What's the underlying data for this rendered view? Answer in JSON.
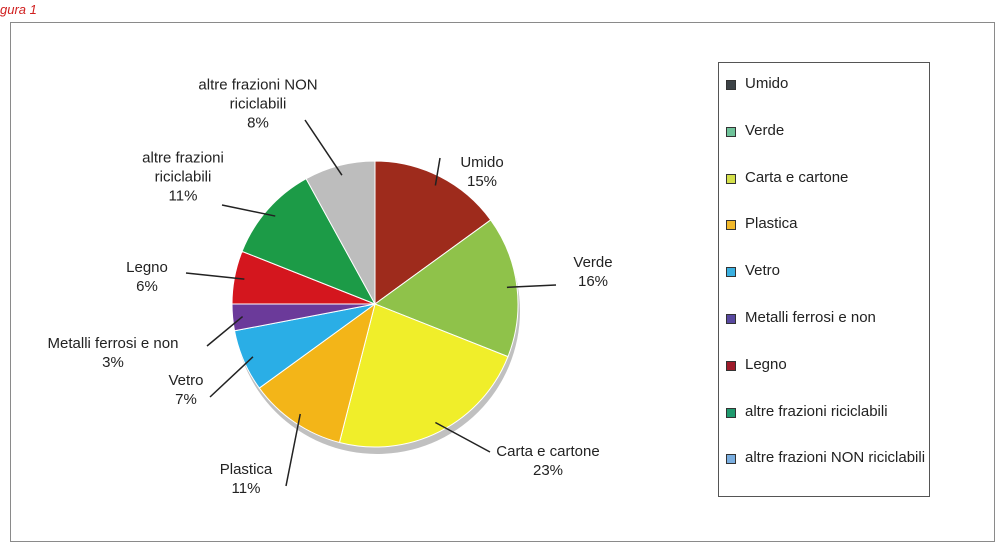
{
  "caption": "gura 1",
  "chart_data": {
    "type": "pie",
    "categories": [
      "Umido",
      "Verde",
      "Carta e cartone",
      "Plastica",
      "Vetro",
      "Metalli ferrosi e non",
      "Legno",
      "altre frazioni riciclabili",
      "altre frazioni NON riciclabili"
    ],
    "values": [
      15,
      16,
      23,
      11,
      7,
      3,
      6,
      11,
      8
    ],
    "value_labels": [
      "15%",
      "16%",
      "23%",
      "11%",
      "7%",
      "3%",
      "6%",
      "11%",
      "8%"
    ],
    "colors": [
      "#9e2b1c",
      "#8fc24a",
      "#f0ee2a",
      "#f3b518",
      "#2aaee6",
      "#6b3a9a",
      "#d4161e",
      "#1c9b47",
      "#bdbdbd"
    ],
    "legend_colors": [
      "#3c4246",
      "#6fc39a",
      "#d4e04a",
      "#f2b92b",
      "#3ab0e0",
      "#5848a0",
      "#9e1b2a",
      "#1f9a6e",
      "#7aaee0"
    ],
    "legend": "right"
  }
}
